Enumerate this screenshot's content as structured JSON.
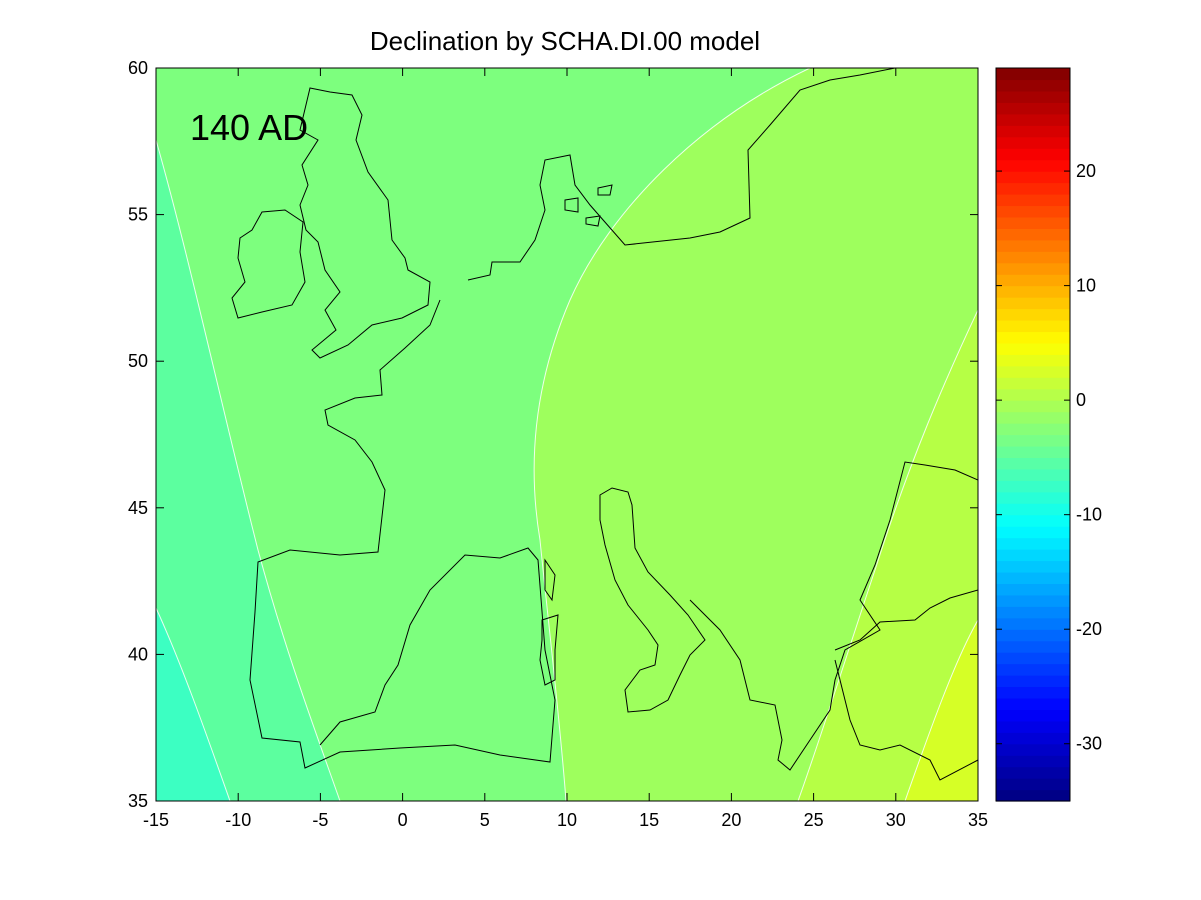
{
  "chart_data": {
    "type": "heatmap",
    "title": "Declination by SCHA.DI.00 model",
    "annotation": "140 AD",
    "xlabel": "",
    "ylabel": "",
    "xlim": [
      -15,
      35
    ],
    "ylim": [
      35,
      60
    ],
    "x_ticks": [
      -15,
      -10,
      -5,
      0,
      5,
      10,
      15,
      20,
      25,
      30,
      35
    ],
    "y_ticks": [
      35,
      40,
      45,
      50,
      55,
      60
    ],
    "colorbar": {
      "range": [
        -35,
        29
      ],
      "ticks": [
        20,
        10,
        0,
        -10,
        -20,
        -30
      ],
      "colormap": "jet"
    },
    "contour_levels": [
      -12,
      -8,
      -4,
      0,
      4
    ],
    "band_colors": [
      "#3cffc2",
      "#5cff9f",
      "#7dff7e",
      "#9eff5d",
      "#b6ff45",
      "#d6ff26"
    ],
    "grid": false,
    "legend": "none"
  }
}
